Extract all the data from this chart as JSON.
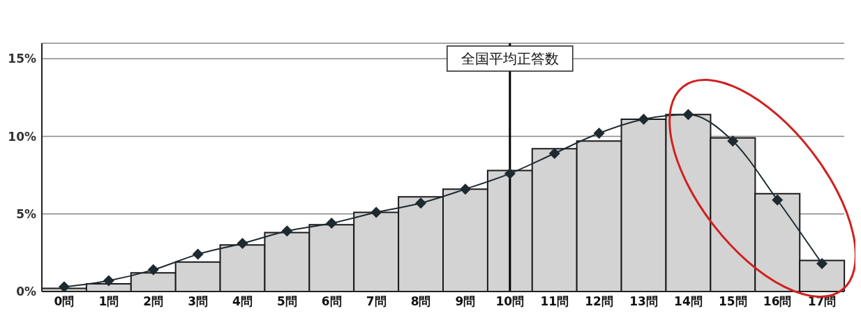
{
  "chart_data": {
    "type": "bar",
    "categories": [
      "0問",
      "1問",
      "2問",
      "3問",
      "4問",
      "5問",
      "6問",
      "7問",
      "8問",
      "9問",
      "10問",
      "11問",
      "12問",
      "13問",
      "14問",
      "15問",
      "16問",
      "17問"
    ],
    "series": [
      {
        "color": "#d3d3d3",
        "values": [
          0.2,
          0.5,
          1.2,
          1.9,
          3.0,
          3.8,
          4.3,
          5.1,
          6.1,
          6.6,
          7.8,
          9.2,
          9.7,
          11.1,
          11.4,
          9.9,
          6.3,
          2.0
        ]
      },
      {
        "type": "line",
        "color": "#1e2a30",
        "values": [
          0.3,
          0.7,
          1.4,
          2.4,
          3.1,
          3.9,
          4.4,
          5.1,
          5.7,
          6.6,
          7.6,
          8.9,
          10.2,
          11.1,
          11.4,
          9.7,
          5.9,
          1.8
        ]
      }
    ],
    "ylim": [
      0,
      16
    ],
    "yticks": [
      {
        "value": 0,
        "label": "0%"
      },
      {
        "value": 5,
        "label": "5%"
      },
      {
        "value": 10,
        "label": "10%"
      },
      {
        "value": 15,
        "label": "15%"
      }
    ],
    "grid": "y",
    "marker": "diamond",
    "legend": false,
    "ref_lines": [
      {
        "axis": "x",
        "value": "10問",
        "label": "全国平均正答数",
        "color": "#000000"
      }
    ]
  }
}
